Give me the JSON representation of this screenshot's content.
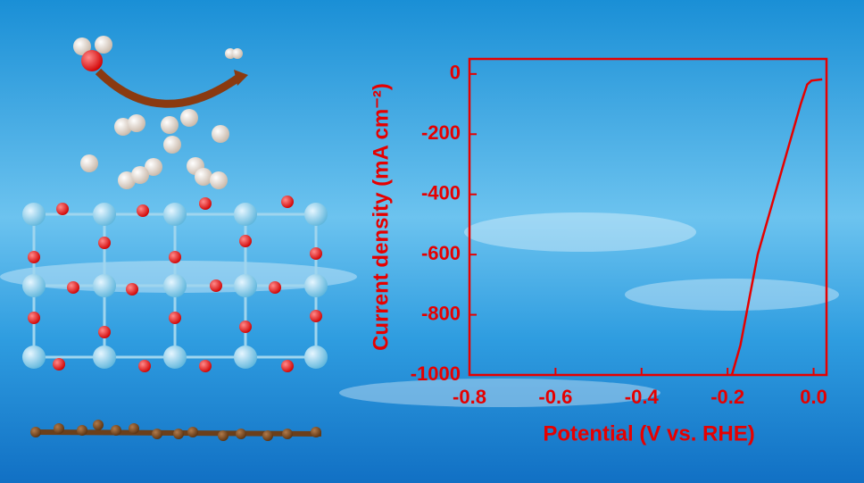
{
  "chart_data": {
    "type": "line",
    "xlabel": "Potential (V vs. RHE)",
    "ylabel": "Current density (mA cm⁻²)",
    "x": [
      -0.19,
      -0.17,
      -0.13,
      -0.09,
      -0.05,
      -0.03,
      -0.015,
      -0.005,
      0.02
    ],
    "series": [
      {
        "color": "#e60000",
        "values": [
          -1000,
          -900,
          -600,
          -400,
          -200,
          -100,
          -35,
          -22,
          -18
        ]
      }
    ],
    "xlim": [
      -0.8,
      0.03
    ],
    "xticks": [
      -0.8,
      -0.6,
      -0.4,
      -0.2,
      {
        "value": 0,
        "label": "0.0"
      }
    ],
    "ylim": [
      -1000,
      50
    ],
    "yticks": [
      0,
      -200,
      -400,
      -600,
      -800,
      -1000
    ],
    "grid": false
  }
}
